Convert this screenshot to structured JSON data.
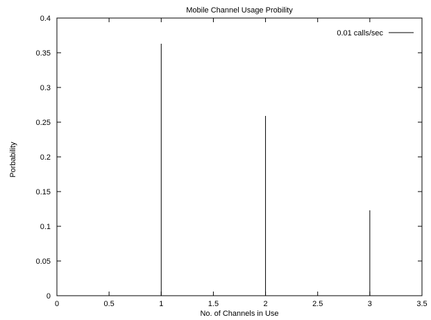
{
  "chart_data": {
    "type": "bar",
    "title": "Mobile Channel Usage Probility",
    "xlabel": "No. of Channels in Use",
    "ylabel": "Porbability",
    "xlim": [
      0,
      3.5
    ],
    "ylim": [
      0,
      0.4
    ],
    "xticks": [
      "0",
      "0.5",
      "1",
      "1.5",
      "2",
      "2.5",
      "3",
      "3.5"
    ],
    "xtick_values": [
      0,
      0.5,
      1,
      1.5,
      2,
      2.5,
      3,
      3.5
    ],
    "yticks": [
      "0",
      "0.05",
      "0.1",
      "0.15",
      "0.2",
      "0.25",
      "0.3",
      "0.35",
      "0.4"
    ],
    "ytick_values": [
      0,
      0.05,
      0.1,
      0.15,
      0.2,
      0.25,
      0.3,
      0.35,
      0.4
    ],
    "grid": false,
    "legend_position": "top-right",
    "series": [
      {
        "name": "0.01 calls/sec",
        "color": "#000000",
        "style": "impulses",
        "x": [
          1,
          2,
          3
        ],
        "values": [
          0.363,
          0.259,
          0.123
        ]
      }
    ]
  }
}
